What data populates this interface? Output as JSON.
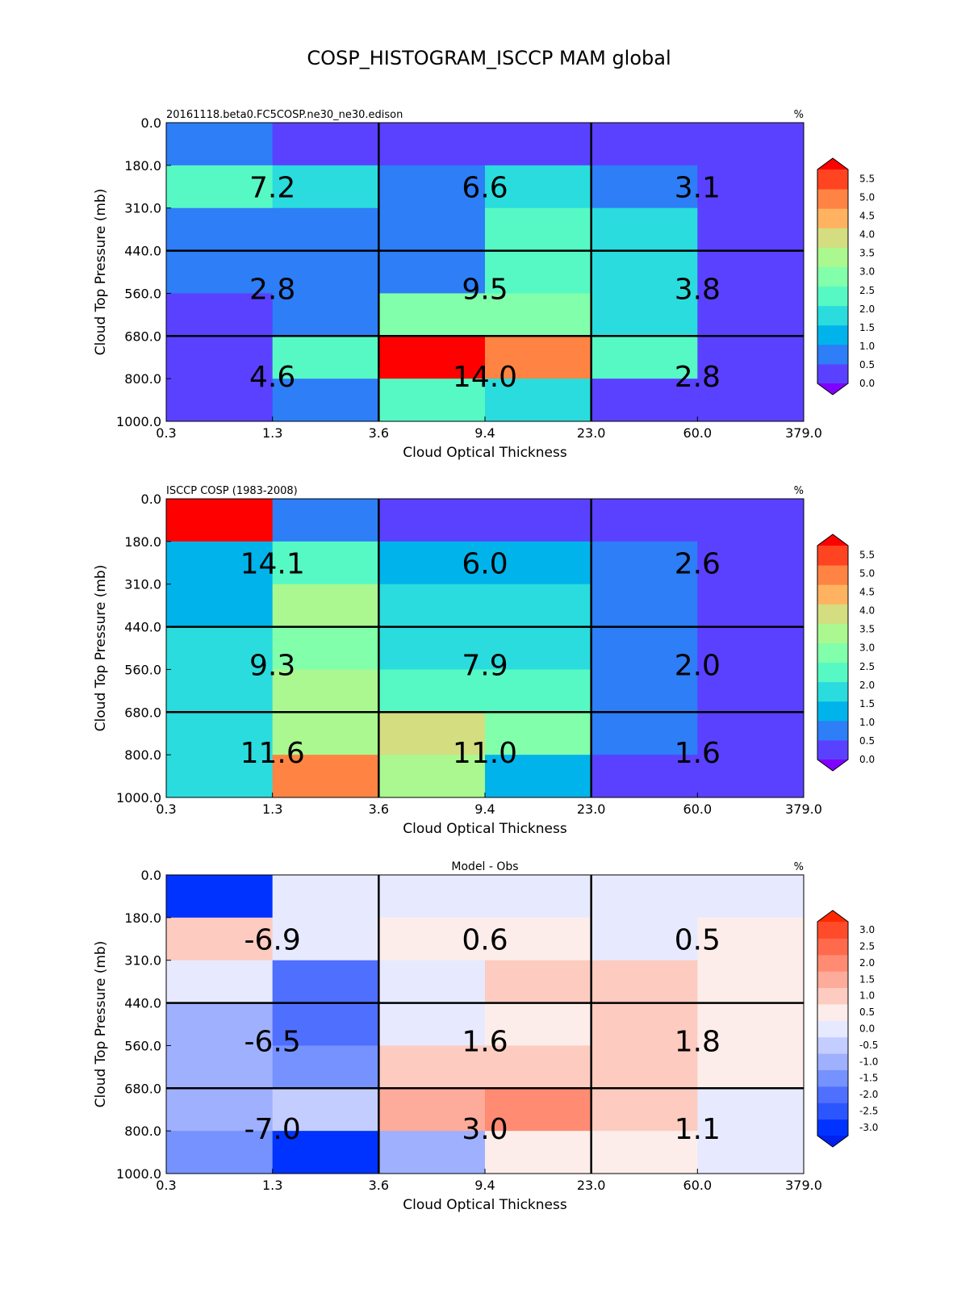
{
  "figure": {
    "title": "COSP_HISTOGRAM_ISCCP MAM global"
  },
  "chart_data": [
    {
      "type": "heatmap",
      "title_left": "20161118.beta0.FC5COSP.ne30_ne30.edison",
      "title_center": "",
      "units": "%",
      "xlabel": "Cloud Optical Thickness",
      "ylabel": "Cloud Top Pressure (mb)",
      "x_ticks": [
        "0.3",
        "1.3",
        "3.6",
        "9.4",
        "23.0",
        "60.0",
        "379.0"
      ],
      "y_ticks": [
        "0.0",
        "180.0",
        "310.0",
        "440.0",
        "560.0",
        "680.0",
        "800.0",
        "1000.0"
      ],
      "colorbar": {
        "ticks": [
          "5.5",
          "5.0",
          "4.5",
          "4.0",
          "3.5",
          "3.0",
          "2.5",
          "2.0",
          "1.5",
          "1.0",
          "0.5",
          "0.0"
        ],
        "colors": [
          "#7f00ff",
          "#5a41ff",
          "#2d7ef7",
          "#00b4eb",
          "#2adcdd",
          "#56f9c4",
          "#82ffaa",
          "#aaf88f",
          "#d4dd80",
          "#ffb360",
          "#ff8444",
          "#ff4422",
          "#ff0000"
        ],
        "extend": "both"
      },
      "cell_values": [
        [
          1.0,
          0.25,
          0.25,
          0.25,
          0.25,
          0.25
        ],
        [
          2.25,
          1.75,
          1.0,
          1.75,
          0.75,
          0.25
        ],
        [
          0.75,
          0.75,
          1.0,
          2.25,
          1.75,
          0.25
        ],
        [
          0.75,
          0.75,
          1.0,
          2.25,
          1.75,
          0.25
        ],
        [
          0.25,
          1.0,
          2.75,
          2.75,
          1.75,
          0.25
        ],
        [
          0.25,
          2.25,
          6.0,
          4.75,
          2.25,
          0.25
        ],
        [
          0.25,
          1.0,
          2.25,
          1.75,
          0.25,
          0.25
        ]
      ],
      "group_totals": [
        [
          7.2,
          6.6,
          3.1
        ],
        [
          2.8,
          9.5,
          3.8
        ],
        [
          4.6,
          14.0,
          2.8
        ]
      ]
    },
    {
      "type": "heatmap",
      "title_left": "ISCCP COSP (1983-2008)",
      "title_center": "",
      "units": "%",
      "xlabel": "Cloud Optical Thickness",
      "ylabel": "Cloud Top Pressure (mb)",
      "x_ticks": [
        "0.3",
        "1.3",
        "3.6",
        "9.4",
        "23.0",
        "60.0",
        "379.0"
      ],
      "y_ticks": [
        "0.0",
        "180.0",
        "310.0",
        "440.0",
        "560.0",
        "680.0",
        "800.0",
        "1000.0"
      ],
      "colorbar": {
        "ticks": [
          "5.5",
          "5.0",
          "4.5",
          "4.0",
          "3.5",
          "3.0",
          "2.5",
          "2.0",
          "1.5",
          "1.0",
          "0.5",
          "0.0"
        ],
        "colors": [
          "#7f00ff",
          "#5a41ff",
          "#2d7ef7",
          "#00b4eb",
          "#2adcdd",
          "#56f9c4",
          "#82ffaa",
          "#aaf88f",
          "#d4dd80",
          "#ffb360",
          "#ff8444",
          "#ff4422",
          "#ff0000"
        ],
        "extend": "both"
      },
      "cell_values": [
        [
          6.0,
          0.75,
          0.25,
          0.25,
          0.25,
          0.25
        ],
        [
          1.25,
          2.25,
          1.25,
          1.25,
          0.75,
          0.25
        ],
        [
          1.25,
          3.25,
          1.75,
          1.75,
          0.75,
          0.25
        ],
        [
          1.75,
          2.75,
          1.75,
          1.75,
          0.75,
          0.25
        ],
        [
          1.75,
          3.25,
          2.25,
          2.25,
          0.75,
          0.25
        ],
        [
          1.75,
          3.25,
          3.75,
          2.75,
          0.75,
          0.25
        ],
        [
          1.75,
          4.75,
          3.25,
          1.25,
          0.25,
          0.25
        ]
      ],
      "group_totals": [
        [
          14.1,
          6.0,
          2.6
        ],
        [
          9.3,
          7.9,
          2.0
        ],
        [
          11.6,
          11.0,
          1.6
        ]
      ]
    },
    {
      "type": "heatmap",
      "title_left": "",
      "title_center": "Model - Obs",
      "units": "%",
      "xlabel": "Cloud Optical Thickness",
      "ylabel": "Cloud Top Pressure (mb)",
      "x_ticks": [
        "0.3",
        "1.3",
        "3.6",
        "9.4",
        "23.0",
        "60.0",
        "379.0"
      ],
      "y_ticks": [
        "0.0",
        "180.0",
        "310.0",
        "440.0",
        "560.0",
        "680.0",
        "800.0",
        "1000.0"
      ],
      "colorbar": {
        "ticks": [
          "3.0",
          "2.5",
          "2.0",
          "1.5",
          "1.0",
          "0.5",
          "0.0",
          "-0.5",
          "-1.0",
          "-1.5",
          "-2.0",
          "-2.5",
          "-3.0"
        ],
        "colors": [
          "#0022ee",
          "#0033ff",
          "#2b55ff",
          "#4f6fff",
          "#7592ff",
          "#9fb0ff",
          "#c4cdff",
          "#e7eaff",
          "#fdedea",
          "#fdcbbf",
          "#fdab9a",
          "#ff8c72",
          "#ff6a4d",
          "#ff4b2a",
          "#ff2800"
        ],
        "extend": "both"
      },
      "cell_values": [
        [
          -3.25,
          -0.25,
          -0.25,
          -0.25,
          -0.25,
          -0.25
        ],
        [
          0.75,
          -0.25,
          0.25,
          0.25,
          -0.25,
          0.25
        ],
        [
          -0.25,
          -2.25,
          -0.25,
          0.75,
          0.75,
          0.25
        ],
        [
          -1.25,
          -2.25,
          -0.25,
          0.25,
          0.75,
          0.25
        ],
        [
          -1.25,
          -1.75,
          0.75,
          0.75,
          0.75,
          0.25
        ],
        [
          -1.25,
          -0.75,
          1.25,
          1.75,
          0.75,
          -0.25
        ],
        [
          -1.75,
          -3.25,
          -1.25,
          0.25,
          0.25,
          -0.25
        ]
      ],
      "group_totals": [
        [
          -6.9,
          0.6,
          0.5
        ],
        [
          -6.5,
          1.6,
          1.8
        ],
        [
          -7.0,
          3.0,
          1.1
        ]
      ]
    }
  ]
}
